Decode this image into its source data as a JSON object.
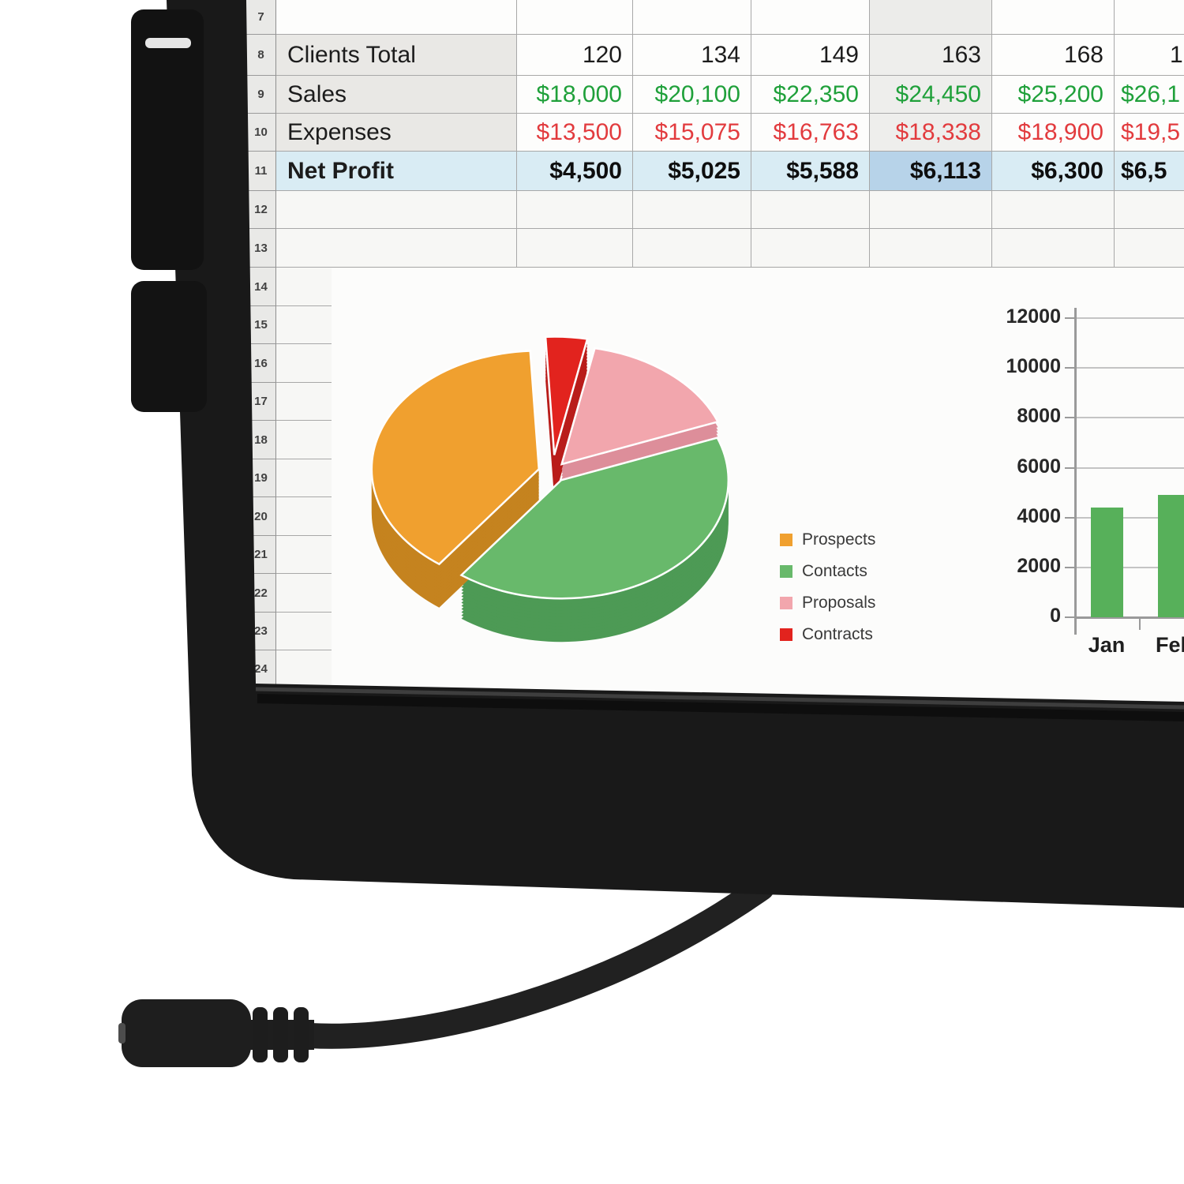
{
  "device": {
    "type": "monitor-product-photo",
    "bezel_color": "#191919",
    "cable_color": "#212121",
    "connector": "3.5mm-audio-jack-female",
    "background_color": "#ffffff"
  },
  "spreadsheet": {
    "visible_row_numbers": [
      "7",
      "8",
      "9",
      "10",
      "11",
      "12",
      "13",
      "14",
      "15",
      "16",
      "17",
      "18",
      "19",
      "20",
      "21",
      "22",
      "23",
      "24"
    ],
    "rows": [
      {
        "num": "8",
        "label": "Clients Total",
        "bold": false,
        "color": "#1c1c1c",
        "values": [
          "120",
          "134",
          "149",
          "163",
          "168",
          "1"
        ]
      },
      {
        "num": "9",
        "label": "Sales",
        "bold": false,
        "color": "#1fa03a",
        "values": [
          "$18,000",
          "$20,100",
          "$22,350",
          "$24,450",
          "$25,200",
          "$26,1"
        ]
      },
      {
        "num": "10",
        "label": "Expenses",
        "bold": false,
        "color": "#e23b3e",
        "values": [
          "$13,500",
          "$15,075",
          "$16,763",
          "$18,338",
          "$18,900",
          "$19,5"
        ]
      },
      {
        "num": "11",
        "label": "Net Profit",
        "bold": true,
        "color": "#0e0e0e",
        "values": [
          "$4,500",
          "$5,025",
          "$5,588",
          "$6,113",
          "$6,300",
          "$6,5"
        ]
      }
    ],
    "selected_cell_value": "$6,113",
    "colors": {
      "grid": "#a8a8a8",
      "row_header_bg": "#e9e9e7",
      "label_bg": "#e9e8e5",
      "highlight_col_bg": "#eeeeec",
      "highlight_col_row7_bg": "#ececea",
      "net_row_bg": "#d9ecf4",
      "selected_cell_bg": "#b7d3e9",
      "cell_bg": "#fdfdfc",
      "screen_bg": "#f7f7f5"
    }
  },
  "chart_data": [
    {
      "type": "pie",
      "effect": "3d-exploded",
      "labels": [
        "Prospects",
        "Contacts",
        "Proposals",
        "Contracts"
      ],
      "values": [
        39,
        41,
        16,
        4
      ],
      "colors": [
        "#f0a02f",
        "#68b96b",
        "#f2a6ad",
        "#e2231e"
      ],
      "side_colors": [
        "#c5831f",
        "#4d9a55",
        "#dd8e9a",
        "#b91d1a"
      ],
      "legend_position": "right"
    },
    {
      "type": "bar",
      "categories": [
        "Jan",
        "Feb"
      ],
      "values": [
        4400,
        4900
      ],
      "bar_color": "#57b05a",
      "ylim": [
        0,
        12000
      ],
      "yticks": [
        0,
        2000,
        4000,
        6000,
        8000,
        10000,
        12000
      ],
      "grid": true,
      "axis_color": "#9a9a9a",
      "gridline_color": "#c4c4c4"
    }
  ]
}
